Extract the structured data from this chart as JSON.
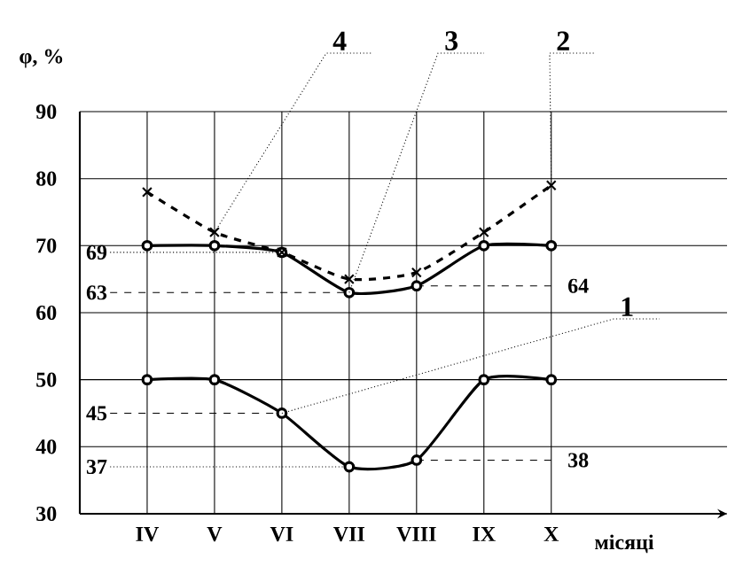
{
  "chart_data": {
    "type": "line",
    "xlabel": "місяці",
    "ylabel": "φ, %",
    "categories": [
      "IV",
      "V",
      "VI",
      "VII",
      "VIII",
      "IX",
      "X"
    ],
    "series": [
      {
        "color": "#000000",
        "values": [
          70,
          70,
          69,
          63,
          64,
          70,
          70
        ],
        "marker": "circle",
        "line_style": "solid"
      },
      {
        "color": "#000000",
        "values": [
          50,
          50,
          45,
          37,
          38,
          50,
          50
        ],
        "marker": "circle",
        "line_style": "solid"
      },
      {
        "color": "#000000",
        "values": [
          78,
          72,
          69,
          65,
          66,
          72,
          79
        ],
        "marker": "cross",
        "line_style": "dashed"
      }
    ],
    "ylim": [
      30,
      90
    ],
    "yticks": [
      30,
      40,
      50,
      60,
      70,
      80,
      90
    ],
    "grid": true,
    "ref_lines": [
      {
        "axis": "y",
        "value": 69,
        "label": "69",
        "line_style": "dotted"
      },
      {
        "axis": "y",
        "value": 63,
        "label": "63",
        "line_style": "dashed"
      },
      {
        "axis": "y",
        "value": 64,
        "label": "64",
        "line_style": "dashed"
      },
      {
        "axis": "y",
        "value": 45,
        "label": "45",
        "line_style": "dashed"
      },
      {
        "axis": "y",
        "value": 37,
        "label": "37",
        "line_style": "dotted"
      },
      {
        "axis": "y",
        "value": 38,
        "label": "38",
        "line_style": "dashed"
      }
    ],
    "annotations": [
      {
        "text": "4",
        "x": "V",
        "y": 72
      },
      {
        "text": "3",
        "x": "VII",
        "y": 63
      },
      {
        "text": "2",
        "x": "X",
        "y": 79
      },
      {
        "text": "1",
        "x": "VI",
        "y": 45
      }
    ]
  }
}
